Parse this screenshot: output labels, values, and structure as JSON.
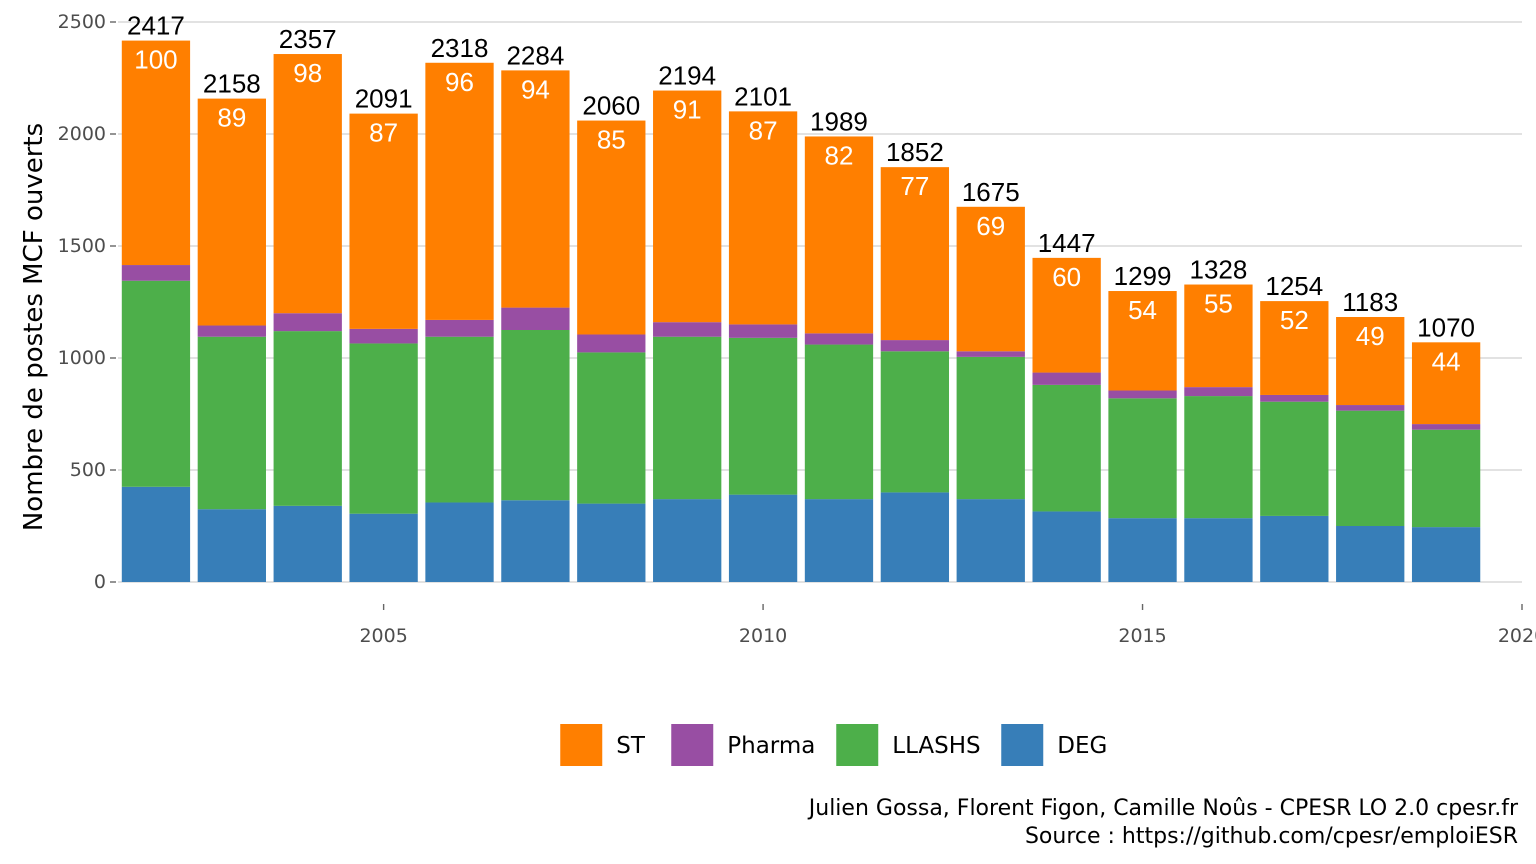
{
  "chart_data": {
    "type": "bar",
    "stacked": true,
    "ylabel": "Nombre de postes MCF ouverts",
    "xlabel": "",
    "ylim": [
      0,
      2500
    ],
    "xlim": [
      2001.5,
      2020
    ],
    "yticks": [
      0,
      500,
      1000,
      1500,
      2000,
      2500
    ],
    "xticks": [
      2005,
      2010,
      2015,
      2020
    ],
    "grid": true,
    "legend_position": "bottom",
    "categories": [
      2002,
      2003,
      2004,
      2005,
      2006,
      2007,
      2008,
      2009,
      2010,
      2011,
      2012,
      2013,
      2014,
      2015,
      2016,
      2017,
      2018,
      2019
    ],
    "series": [
      {
        "name": "DEG",
        "color": "#377EB8",
        "values": [
          425,
          325,
          340,
          305,
          355,
          365,
          350,
          370,
          390,
          370,
          400,
          370,
          315,
          285,
          285,
          295,
          250,
          245
        ]
      },
      {
        "name": "LLASHS",
        "color": "#4DAF4A",
        "values": [
          920,
          770,
          780,
          760,
          740,
          760,
          675,
          725,
          700,
          690,
          630,
          635,
          565,
          535,
          545,
          510,
          515,
          435
        ]
      },
      {
        "name": "Pharma",
        "color": "#984EA3",
        "values": [
          70,
          50,
          80,
          65,
          75,
          100,
          80,
          65,
          60,
          50,
          50,
          25,
          55,
          35,
          40,
          30,
          25,
          25
        ]
      },
      {
        "name": "ST",
        "color": "#FF7F00",
        "values": [
          1002,
          1013,
          1157,
          961,
          1148,
          1059,
          955,
          1034,
          951,
          879,
          772,
          645,
          512,
          444,
          458,
          419,
          393,
          365
        ]
      }
    ],
    "totals": [
      2417,
      2158,
      2357,
      2091,
      2318,
      2284,
      2060,
      2194,
      2101,
      1989,
      1852,
      1675,
      1447,
      1299,
      1328,
      1254,
      1183,
      1070
    ],
    "index_labels": [
      100,
      89,
      98,
      87,
      96,
      94,
      85,
      91,
      87,
      82,
      77,
      69,
      60,
      54,
      55,
      52,
      49,
      44
    ],
    "legend": [
      "ST",
      "Pharma",
      "LLASHS",
      "DEG"
    ]
  },
  "caption": {
    "line1": "Julien Gossa, Florent Figon, Camille Noûs - CPESR LO 2.0 cpesr.fr",
    "line2": "Source : https://github.com/cpesr/emploiESR"
  }
}
